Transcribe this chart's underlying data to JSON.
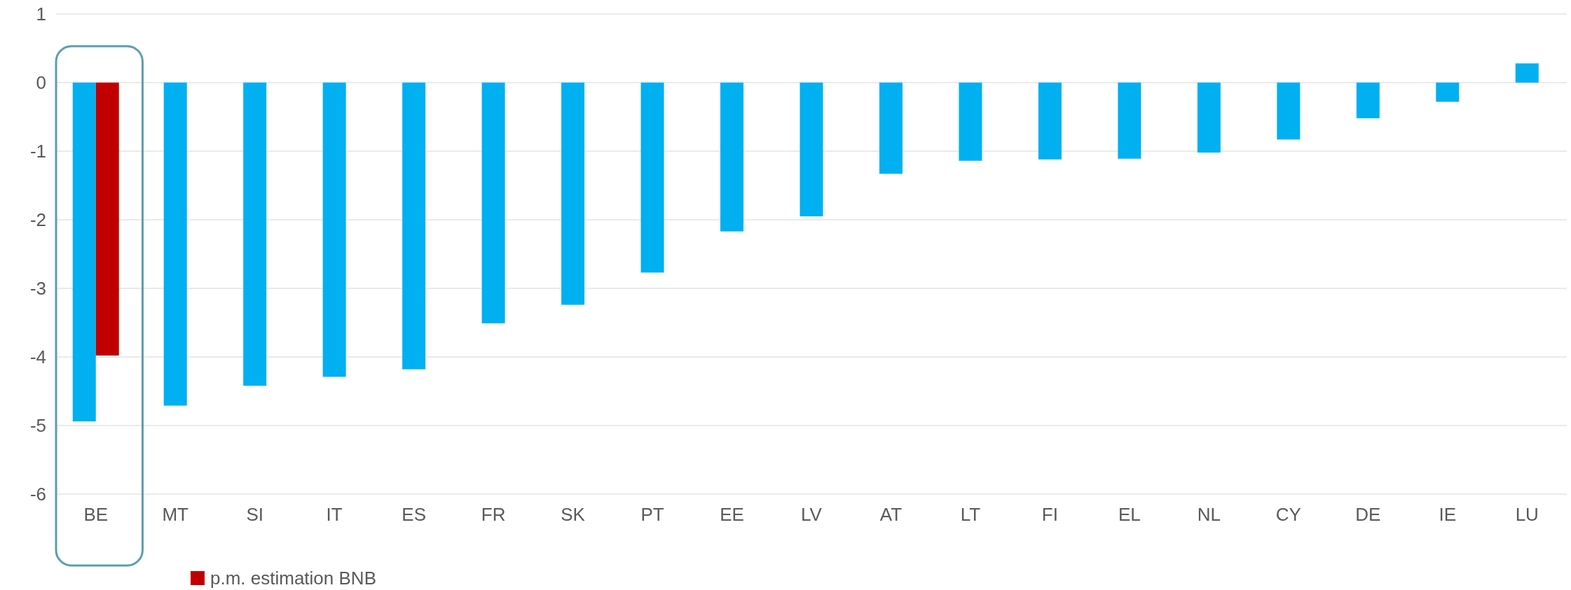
{
  "chart_data": {
    "type": "bar",
    "categories": [
      "BE",
      "MT",
      "SI",
      "IT",
      "ES",
      "FR",
      "SK",
      "PT",
      "EE",
      "LV",
      "AT",
      "LT",
      "FI",
      "EL",
      "NL",
      "CY",
      "DE",
      "IE",
      "LU"
    ],
    "series": [
      {
        "color": "#00b0f0",
        "values": [
          -4.94,
          -4.71,
          -4.42,
          -4.29,
          -4.18,
          -3.51,
          -3.24,
          -2.77,
          -2.17,
          -1.95,
          -1.33,
          -1.14,
          -1.12,
          -1.11,
          -1.02,
          -0.83,
          -0.52,
          -0.28,
          0.28
        ]
      },
      {
        "name": "p.m. estimation BNB",
        "color": "#c00000",
        "values": [
          -3.98,
          null,
          null,
          null,
          null,
          null,
          null,
          null,
          null,
          null,
          null,
          null,
          null,
          null,
          null,
          null,
          null,
          null,
          null
        ]
      }
    ],
    "ylim": [
      -6,
      1
    ],
    "yticks": [
      -6,
      -5,
      -4,
      -3,
      -2,
      -1,
      0,
      1
    ],
    "grid": "y",
    "legend": "bottom left"
  }
}
